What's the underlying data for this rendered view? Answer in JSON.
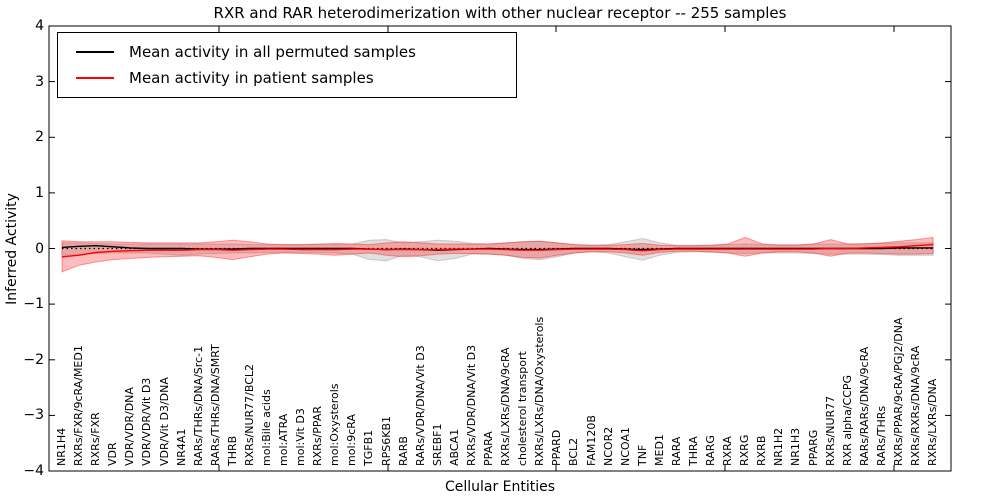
{
  "chart_data": {
    "type": "line",
    "title": "RXR and RAR heterodimerization with other nuclear receptor -- 255 samples",
    "xlabel": "Cellular Entities",
    "ylabel": "Inferred Activity",
    "ylim": [
      -4,
      4
    ],
    "yticks": [
      4,
      3,
      2,
      1,
      0,
      -1,
      -2,
      -3,
      -4
    ],
    "grid": false,
    "legend_position": "upper left",
    "zero_line": {
      "y": 0,
      "style": "dotted",
      "color": "#000000"
    },
    "categories": [
      "NR1H4",
      "RXRs/FXR/9cRA/MED1",
      "RXRs/FXR",
      "VDR",
      "VDR/VDR/DNA",
      "VDR/VDR/Vit D3",
      "VDR/Vit D3/DNA",
      "NR4A1",
      "RARs/THRs/DNA/Src-1",
      "RARs/THRs/DNA/SMRT",
      "THRB",
      "RXRs/NUR77/BCL2",
      "mol:Bile acids",
      "mol:ATRA",
      "mol:Vit D3",
      "RXRs/PPAR",
      "mol:Oxysterols",
      "mol:9cRA",
      "TGFB1",
      "RPS6KB1",
      "RARB",
      "RARs/VDR/DNA/Vit D3",
      "SREBF1",
      "ABCA1",
      "RXRs/VDR/DNA/Vit D3",
      "PPARA",
      "RXRs/LXRs/DNA/9cRA",
      "cholesterol transport",
      "RXRs/LXRs/DNA/Oxysterols",
      "PPARD",
      "BCL2",
      "FAM120B",
      "NCOR2",
      "NCOA1",
      "TNF",
      "MED1",
      "RARA",
      "THRA",
      "RARG",
      "RXRA",
      "RXRG",
      "RXRB",
      "NR1H2",
      "NR1H3",
      "PPARG",
      "RXRs/NUR77",
      "RXR alpha/CCPG",
      "RARs/RARs/DNA/9cRA",
      "RARs/THRs",
      "RXRs/PPAR/9cRA/PGJ2/DNA",
      "RXRs/RXRs/DNA/9cRA",
      "RXRs/LXRs/DNA"
    ],
    "series": [
      {
        "name": "Mean activity in all permuted samples",
        "color": "#000000",
        "values": [
          0.02,
          0.04,
          0.05,
          0.03,
          0.01,
          0.0,
          0.0,
          0.0,
          -0.01,
          -0.01,
          -0.01,
          0.0,
          0.0,
          0.0,
          0.0,
          0.0,
          0.0,
          0.0,
          -0.01,
          -0.02,
          -0.01,
          -0.02,
          -0.03,
          -0.02,
          -0.01,
          0.0,
          -0.01,
          -0.02,
          -0.02,
          -0.01,
          0.0,
          0.0,
          0.0,
          -0.01,
          -0.02,
          -0.01,
          0.0,
          0.0,
          0.0,
          0.0,
          0.0,
          0.0,
          0.0,
          0.0,
          0.0,
          0.0,
          0.0,
          0.0,
          0.0,
          0.01,
          0.01,
          0.01
        ]
      },
      {
        "name": "Mean activity in patient samples",
        "color": "#ff0000",
        "values": [
          -0.15,
          -0.12,
          -0.07,
          -0.05,
          -0.04,
          -0.03,
          -0.03,
          -0.03,
          -0.02,
          -0.02,
          -0.03,
          -0.02,
          -0.01,
          -0.01,
          -0.02,
          -0.02,
          -0.02,
          -0.01,
          -0.01,
          -0.02,
          -0.02,
          -0.02,
          -0.02,
          -0.01,
          -0.01,
          -0.01,
          -0.02,
          -0.03,
          -0.03,
          -0.02,
          -0.01,
          -0.01,
          -0.01,
          -0.02,
          -0.04,
          -0.02,
          -0.01,
          -0.01,
          -0.01,
          -0.01,
          -0.01,
          -0.01,
          -0.01,
          -0.01,
          -0.01,
          0.0,
          0.0,
          0.01,
          0.02,
          0.03,
          0.05,
          0.07
        ]
      }
    ],
    "bands": [
      {
        "name": "permuted-samples-range",
        "color": "#999999",
        "opacity": 0.3,
        "lower": [
          -0.12,
          -0.1,
          -0.09,
          -0.08,
          -0.08,
          -0.08,
          -0.1,
          -0.12,
          -0.1,
          -0.09,
          -0.08,
          -0.08,
          -0.07,
          -0.07,
          -0.07,
          -0.07,
          -0.08,
          -0.1,
          -0.2,
          -0.22,
          -0.12,
          -0.15,
          -0.22,
          -0.18,
          -0.1,
          -0.1,
          -0.12,
          -0.18,
          -0.2,
          -0.15,
          -0.08,
          -0.06,
          -0.08,
          -0.15,
          -0.21,
          -0.12,
          -0.07,
          -0.06,
          -0.07,
          -0.08,
          -0.09,
          -0.08,
          -0.08,
          -0.08,
          -0.09,
          -0.1,
          -0.1,
          -0.1,
          -0.11,
          -0.12,
          -0.12,
          -0.12
        ],
        "upper": [
          0.1,
          0.1,
          0.09,
          0.08,
          0.08,
          0.08,
          0.08,
          0.08,
          0.08,
          0.08,
          0.08,
          0.07,
          0.07,
          0.07,
          0.07,
          0.07,
          0.07,
          0.08,
          0.15,
          0.16,
          0.1,
          0.12,
          0.15,
          0.13,
          0.09,
          0.08,
          0.1,
          0.12,
          0.13,
          0.1,
          0.07,
          0.06,
          0.07,
          0.12,
          0.18,
          0.1,
          0.06,
          0.06,
          0.06,
          0.07,
          0.08,
          0.07,
          0.07,
          0.07,
          0.08,
          0.08,
          0.08,
          0.09,
          0.09,
          0.1,
          0.1,
          0.1
        ]
      },
      {
        "name": "patient-samples-range",
        "color": "#ff2222",
        "opacity": 0.3,
        "lower": [
          -0.42,
          -0.3,
          -0.24,
          -0.2,
          -0.18,
          -0.16,
          -0.15,
          -0.14,
          -0.13,
          -0.16,
          -0.2,
          -0.15,
          -0.1,
          -0.08,
          -0.09,
          -0.1,
          -0.12,
          -0.1,
          -0.08,
          -0.12,
          -0.15,
          -0.13,
          -0.1,
          -0.09,
          -0.09,
          -0.1,
          -0.12,
          -0.16,
          -0.17,
          -0.12,
          -0.08,
          -0.06,
          -0.06,
          -0.08,
          -0.12,
          -0.07,
          -0.05,
          -0.05,
          -0.06,
          -0.08,
          -0.14,
          -0.08,
          -0.06,
          -0.06,
          -0.08,
          -0.14,
          -0.08,
          -0.08,
          -0.09,
          -0.1,
          -0.1,
          -0.09
        ],
        "upper": [
          0.14,
          0.12,
          0.12,
          0.12,
          0.11,
          0.1,
          0.1,
          0.1,
          0.1,
          0.12,
          0.15,
          0.12,
          0.08,
          0.07,
          0.07,
          0.08,
          0.09,
          0.08,
          0.07,
          0.1,
          0.12,
          0.1,
          0.08,
          0.08,
          0.08,
          0.08,
          0.1,
          0.12,
          0.13,
          0.1,
          0.07,
          0.06,
          0.06,
          0.07,
          0.09,
          0.06,
          0.05,
          0.05,
          0.06,
          0.08,
          0.2,
          0.08,
          0.06,
          0.06,
          0.08,
          0.16,
          0.08,
          0.08,
          0.1,
          0.13,
          0.16,
          0.2
        ]
      }
    ]
  }
}
